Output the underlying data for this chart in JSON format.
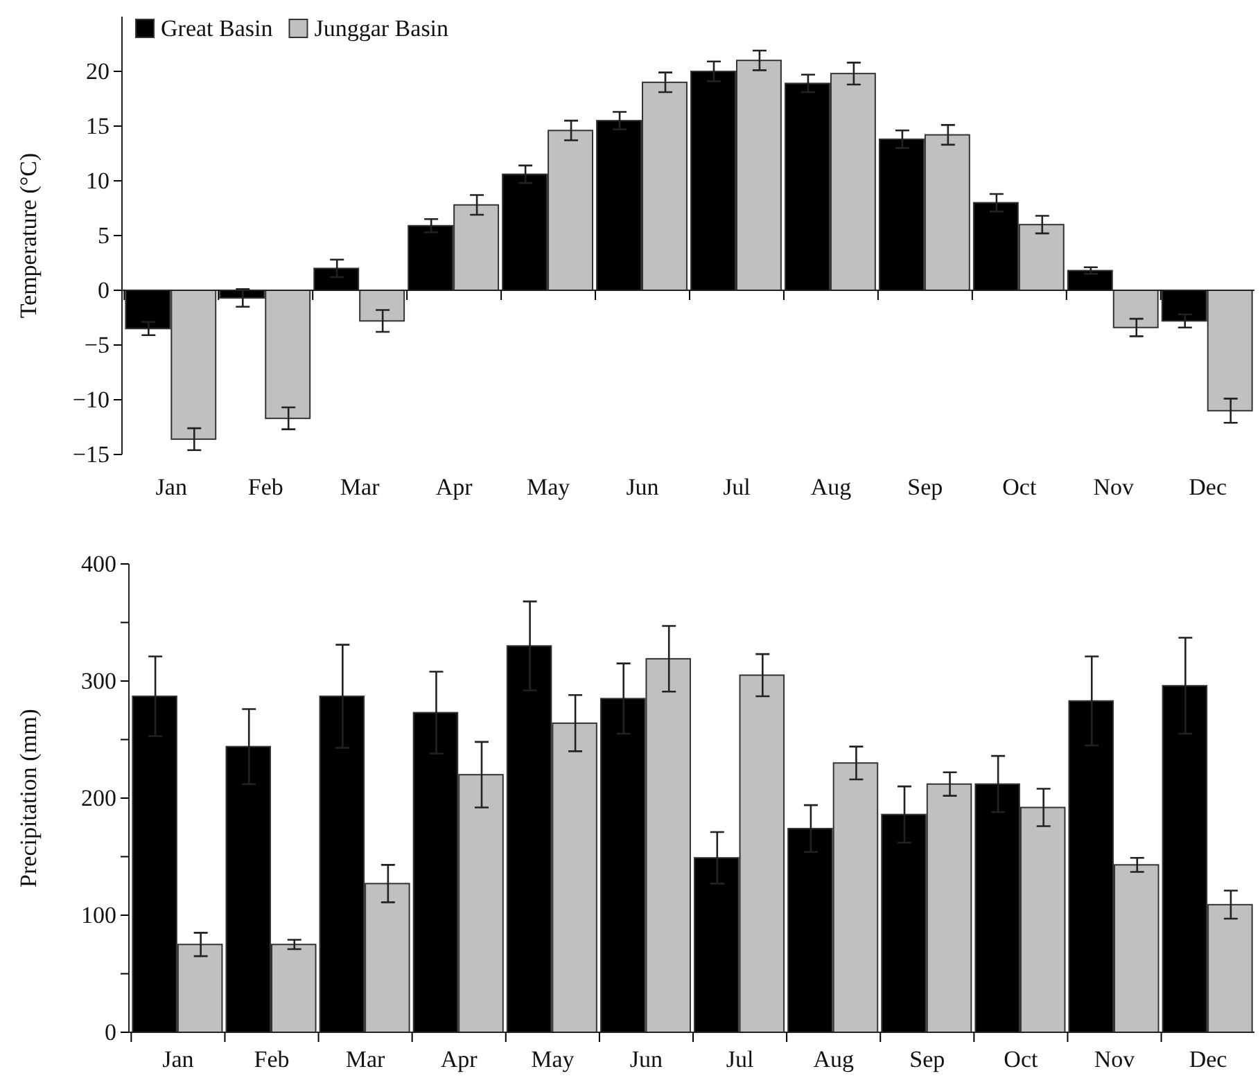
{
  "chart_data": [
    {
      "type": "bar",
      "ylabel": "Temperature (°C)",
      "categories": [
        "Jan",
        "Feb",
        "Mar",
        "Apr",
        "May",
        "Jun",
        "Jul",
        "Aug",
        "Sep",
        "Oct",
        "Nov",
        "Dec"
      ],
      "series": [
        {
          "name": "Great Basin",
          "color": "#000000",
          "values": [
            -3.5,
            -0.7,
            2.0,
            5.9,
            10.6,
            15.5,
            20.0,
            18.9,
            13.8,
            8.0,
            1.8,
            -2.8
          ],
          "errors": [
            0.6,
            0.8,
            0.8,
            0.6,
            0.8,
            0.8,
            0.9,
            0.8,
            0.8,
            0.8,
            0.3,
            0.6
          ]
        },
        {
          "name": "Junggar Basin",
          "color": "#c0c0c0",
          "values": [
            -13.6,
            -11.7,
            -2.8,
            7.8,
            14.6,
            19.0,
            21.0,
            19.8,
            14.2,
            6.0,
            -3.4,
            -11.0
          ],
          "errors": [
            1.0,
            1.0,
            1.0,
            0.9,
            0.9,
            0.9,
            0.9,
            1.0,
            0.9,
            0.8,
            0.8,
            1.1
          ]
        }
      ],
      "ylim": [
        -15,
        25
      ],
      "yticks": [
        -15,
        -10,
        -5,
        0,
        5,
        10,
        15,
        20
      ],
      "legend": "top left"
    },
    {
      "type": "bar",
      "ylabel": "Precipitation (mm)",
      "categories": [
        "Jan",
        "Feb",
        "Mar",
        "Apr",
        "May",
        "Jun",
        "Jul",
        "Aug",
        "Sep",
        "Oct",
        "Nov",
        "Dec"
      ],
      "series": [
        {
          "color": "#000000",
          "values": [
            287,
            244,
            287,
            273,
            330,
            285,
            149,
            174,
            186,
            212,
            283,
            296
          ],
          "errors": [
            34,
            32,
            44,
            35,
            38,
            30,
            22,
            20,
            24,
            24,
            38,
            41
          ]
        },
        {
          "color": "#c0c0c0",
          "values": [
            75,
            75,
            127,
            220,
            264,
            319,
            305,
            230,
            212,
            192,
            143,
            109
          ],
          "errors": [
            10,
            4,
            16,
            28,
            24,
            28,
            18,
            14,
            10,
            16,
            6,
            12
          ]
        }
      ],
      "ylim": [
        0,
        400
      ],
      "yticks": [
        0,
        {
          "value": 50,
          "label": null
        },
        100,
        {
          "value": 150,
          "label": null
        },
        200,
        {
          "value": 250,
          "label": null
        },
        300,
        {
          "value": 350,
          "label": null
        },
        400
      ],
      "legend": false,
      "grid": false
    }
  ]
}
